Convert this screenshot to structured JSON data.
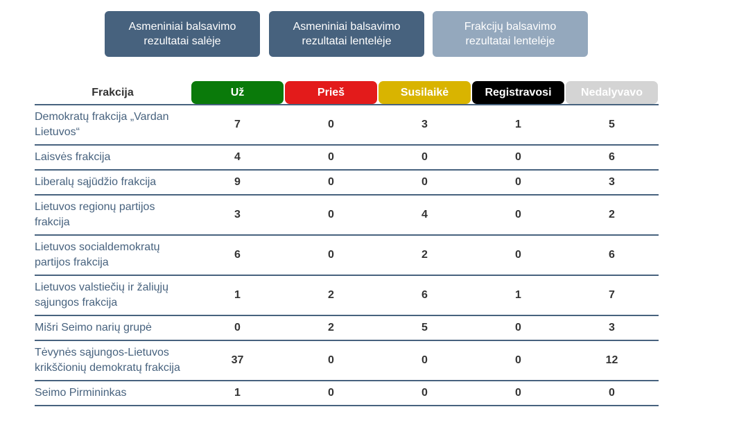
{
  "buttons": [
    {
      "label": "Asmeniniai balsavimo rezultatai salėje"
    },
    {
      "label": "Asmeniniai balsavimo rezultatai lentelėje"
    },
    {
      "label": "Frakcijų balsavimo rezultatai lentelėje"
    }
  ],
  "table": {
    "headers": [
      "Frakcija",
      "Už",
      "Prieš",
      "Susilaikė",
      "Registravosi",
      "Nedalyvavo"
    ],
    "rows": [
      [
        "Demokratų frakcija „Vardan Lietuvos“",
        7,
        0,
        3,
        1,
        5
      ],
      [
        "Laisvės frakcija",
        4,
        0,
        0,
        0,
        6
      ],
      [
        "Liberalų sąjūdžio frakcija",
        9,
        0,
        0,
        0,
        3
      ],
      [
        "Lietuvos regionų partijos frakcija",
        3,
        0,
        4,
        0,
        2
      ],
      [
        "Lietuvos socialdemokratų partijos frakcija",
        6,
        0,
        2,
        0,
        6
      ],
      [
        "Lietuvos valstiečių ir žaliųjų sąjungos frakcija",
        1,
        2,
        6,
        1,
        7
      ],
      [
        "Mišri Seimo narių grupė",
        0,
        2,
        5,
        0,
        3
      ],
      [
        "Tėvynės sąjungos-Lietuvos krikščionių demokratų frakcija",
        37,
        0,
        0,
        0,
        12
      ],
      [
        "Seimo Pirmininkas",
        1,
        0,
        0,
        0,
        0
      ]
    ]
  }
}
